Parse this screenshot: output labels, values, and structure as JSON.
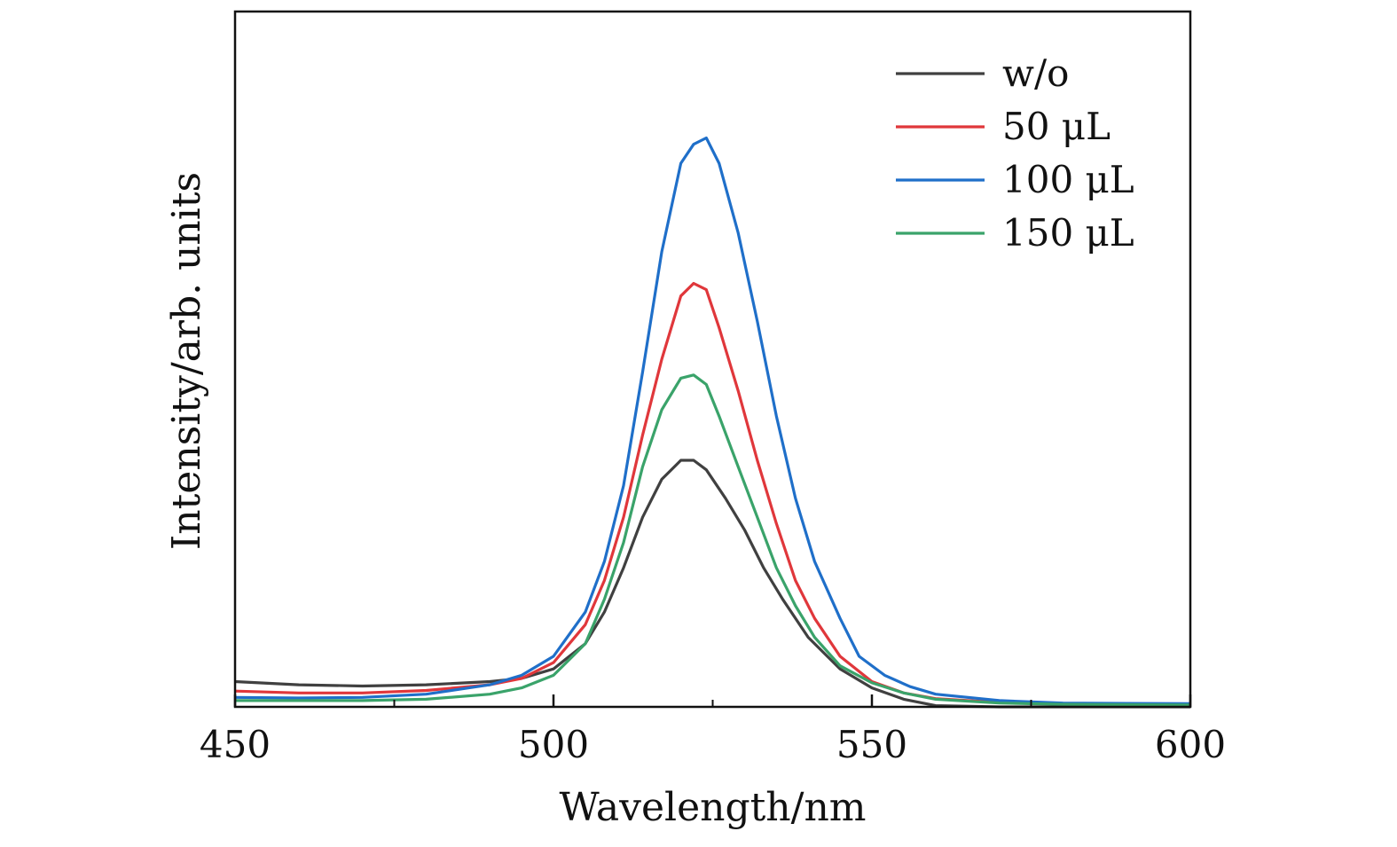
{
  "chart_data": {
    "type": "line",
    "title": "",
    "xlabel": "Wavelength/nm",
    "ylabel": "Intensity/arb. units",
    "xlim": [
      450,
      600
    ],
    "ylim": [
      0,
      1.1
    ],
    "xticks": [
      450,
      500,
      550,
      600
    ],
    "xticks_minor": [
      475,
      525,
      575
    ],
    "grid": false,
    "legend_position": "top-right",
    "series": [
      {
        "name": "w/o",
        "color": "#404040",
        "points": [
          [
            450,
            0.04
          ],
          [
            460,
            0.035
          ],
          [
            470,
            0.033
          ],
          [
            480,
            0.035
          ],
          [
            490,
            0.04
          ],
          [
            495,
            0.045
          ],
          [
            500,
            0.06
          ],
          [
            505,
            0.1
          ],
          [
            508,
            0.15
          ],
          [
            511,
            0.22
          ],
          [
            514,
            0.3
          ],
          [
            517,
            0.36
          ],
          [
            520,
            0.39
          ],
          [
            522,
            0.39
          ],
          [
            524,
            0.375
          ],
          [
            527,
            0.33
          ],
          [
            530,
            0.28
          ],
          [
            533,
            0.22
          ],
          [
            536,
            0.17
          ],
          [
            540,
            0.11
          ],
          [
            545,
            0.06
          ],
          [
            550,
            0.03
          ],
          [
            555,
            0.012
          ],
          [
            560,
            0.002
          ],
          [
            570,
            0.0
          ],
          [
            600,
            0.0
          ]
        ]
      },
      {
        "name": "50 μL",
        "color": "#e0373b",
        "points": [
          [
            450,
            0.025
          ],
          [
            460,
            0.022
          ],
          [
            470,
            0.022
          ],
          [
            480,
            0.026
          ],
          [
            490,
            0.035
          ],
          [
            495,
            0.045
          ],
          [
            500,
            0.07
          ],
          [
            505,
            0.13
          ],
          [
            508,
            0.2
          ],
          [
            511,
            0.3
          ],
          [
            514,
            0.43
          ],
          [
            517,
            0.55
          ],
          [
            520,
            0.65
          ],
          [
            522,
            0.67
          ],
          [
            524,
            0.66
          ],
          [
            526,
            0.6
          ],
          [
            529,
            0.5
          ],
          [
            532,
            0.39
          ],
          [
            535,
            0.29
          ],
          [
            538,
            0.2
          ],
          [
            541,
            0.14
          ],
          [
            545,
            0.08
          ],
          [
            550,
            0.04
          ],
          [
            555,
            0.022
          ],
          [
            560,
            0.013
          ],
          [
            570,
            0.007
          ],
          [
            580,
            0.005
          ],
          [
            600,
            0.004
          ]
        ]
      },
      {
        "name": "100 μL",
        "color": "#1f6fc9",
        "points": [
          [
            450,
            0.015
          ],
          [
            460,
            0.014
          ],
          [
            470,
            0.015
          ],
          [
            480,
            0.02
          ],
          [
            490,
            0.035
          ],
          [
            495,
            0.05
          ],
          [
            500,
            0.08
          ],
          [
            505,
            0.15
          ],
          [
            508,
            0.23
          ],
          [
            511,
            0.35
          ],
          [
            514,
            0.53
          ],
          [
            517,
            0.72
          ],
          [
            520,
            0.86
          ],
          [
            522,
            0.89
          ],
          [
            524,
            0.9
          ],
          [
            526,
            0.86
          ],
          [
            529,
            0.75
          ],
          [
            532,
            0.61
          ],
          [
            535,
            0.46
          ],
          [
            538,
            0.33
          ],
          [
            541,
            0.23
          ],
          [
            545,
            0.14
          ],
          [
            548,
            0.08
          ],
          [
            552,
            0.05
          ],
          [
            556,
            0.032
          ],
          [
            560,
            0.02
          ],
          [
            570,
            0.01
          ],
          [
            580,
            0.006
          ],
          [
            600,
            0.005
          ]
        ]
      },
      {
        "name": "150 μL",
        "color": "#3aa36a",
        "points": [
          [
            450,
            0.01
          ],
          [
            460,
            0.01
          ],
          [
            470,
            0.01
          ],
          [
            480,
            0.012
          ],
          [
            490,
            0.02
          ],
          [
            495,
            0.03
          ],
          [
            500,
            0.05
          ],
          [
            505,
            0.1
          ],
          [
            508,
            0.17
          ],
          [
            511,
            0.26
          ],
          [
            514,
            0.38
          ],
          [
            517,
            0.47
          ],
          [
            520,
            0.52
          ],
          [
            522,
            0.525
          ],
          [
            524,
            0.51
          ],
          [
            526,
            0.46
          ],
          [
            529,
            0.38
          ],
          [
            532,
            0.3
          ],
          [
            535,
            0.22
          ],
          [
            538,
            0.16
          ],
          [
            541,
            0.11
          ],
          [
            545,
            0.065
          ],
          [
            550,
            0.038
          ],
          [
            555,
            0.022
          ],
          [
            560,
            0.012
          ],
          [
            570,
            0.006
          ],
          [
            580,
            0.004
          ],
          [
            600,
            0.003
          ]
        ]
      }
    ]
  }
}
